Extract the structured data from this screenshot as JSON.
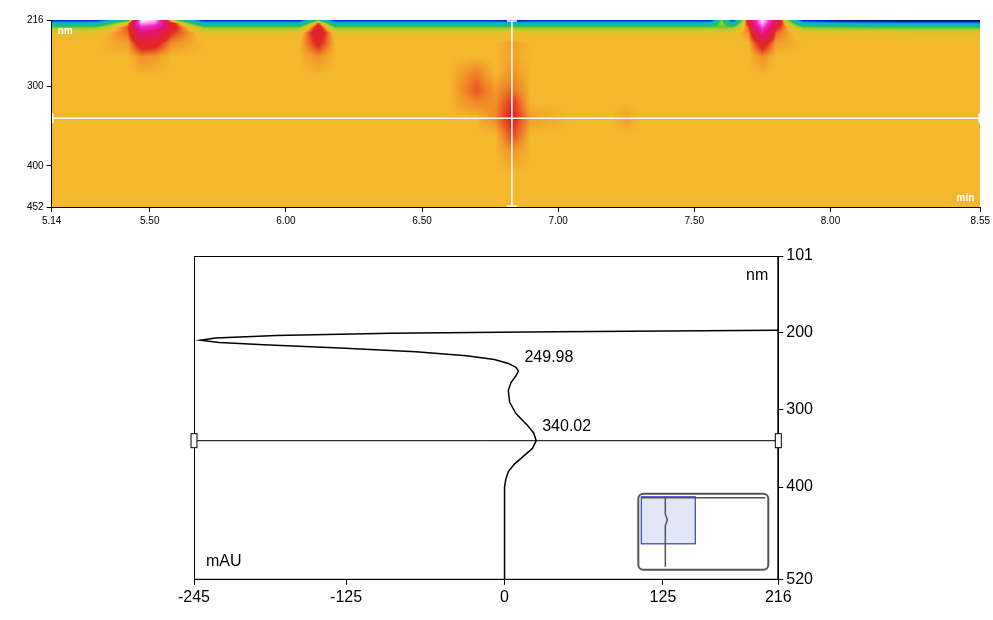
{
  "chart_data": [
    {
      "type": "heatmap",
      "x": [
        5.14,
        5.3,
        5.42,
        5.47,
        5.52,
        5.58,
        5.7,
        5.9,
        6.05,
        6.12,
        6.18,
        6.35,
        6.6,
        6.7,
        6.77,
        6.83,
        6.9,
        7.05,
        7.2,
        7.25,
        7.3,
        7.5,
        7.56,
        7.6,
        7.64,
        7.7,
        7.75,
        7.8,
        7.9,
        8.05,
        8.3,
        8.55
      ],
      "y": [
        216,
        220,
        225,
        232,
        245,
        262,
        285,
        305,
        320,
        340,
        360,
        380,
        410,
        452
      ],
      "z": [
        [
          -200,
          -200,
          -80,
          216,
          200,
          -30,
          -200,
          -200,
          -200,
          -60,
          -200,
          -200,
          -200,
          -200,
          -200,
          -220,
          -200,
          -200,
          -200,
          -200,
          -200,
          -200,
          -200,
          -40,
          -200,
          60,
          216,
          80,
          -200,
          -230,
          -240,
          -240
        ],
        [
          -110,
          -110,
          0,
          190,
          170,
          40,
          -110,
          -110,
          -110,
          20,
          -110,
          -110,
          -110,
          -110,
          -110,
          -110,
          -110,
          -110,
          -110,
          -110,
          -110,
          -110,
          -110,
          -30,
          -110,
          40,
          200,
          60,
          -110,
          -130,
          -140,
          -140
        ],
        [
          -45,
          -45,
          20,
          140,
          120,
          40,
          -45,
          -45,
          -45,
          40,
          -45,
          -45,
          -45,
          -45,
          -45,
          -45,
          -45,
          -45,
          -45,
          -45,
          -45,
          -45,
          -45,
          -45,
          -45,
          20,
          160,
          35,
          -45,
          -50,
          -55,
          -55
        ],
        [
          -8,
          -8,
          15,
          90,
          80,
          25,
          -8,
          -8,
          -8,
          45,
          -8,
          -8,
          -8,
          -8,
          -8,
          -8,
          -8,
          -8,
          -8,
          -8,
          -8,
          -8,
          -8,
          -8,
          -8,
          10,
          110,
          15,
          -8,
          -8,
          -10,
          -10
        ],
        [
          0,
          0,
          5,
          40,
          35,
          8,
          0,
          0,
          0,
          30,
          0,
          0,
          0,
          0,
          0,
          5,
          0,
          0,
          0,
          0,
          0,
          0,
          0,
          0,
          0,
          0,
          40,
          5,
          0,
          0,
          0,
          0
        ],
        [
          0,
          0,
          0,
          8,
          6,
          0,
          0,
          0,
          0,
          8,
          0,
          0,
          0,
          0,
          0,
          4,
          0,
          0,
          0,
          0,
          0,
          0,
          0,
          0,
          0,
          0,
          8,
          0,
          0,
          0,
          0,
          0
        ],
        [
          0,
          0,
          0,
          0,
          0,
          0,
          0,
          0,
          0,
          0,
          0,
          0,
          0,
          12,
          0,
          8,
          0,
          0,
          0,
          0,
          0,
          0,
          0,
          0,
          0,
          0,
          0,
          0,
          0,
          0,
          0,
          0
        ],
        [
          0,
          0,
          0,
          0,
          0,
          0,
          0,
          0,
          0,
          0,
          0,
          0,
          0,
          18,
          6,
          15,
          0,
          0,
          0,
          0,
          0,
          0,
          0,
          0,
          0,
          0,
          0,
          0,
          0,
          0,
          0,
          0
        ],
        [
          0,
          0,
          0,
          0,
          0,
          0,
          0,
          0,
          0,
          0,
          0,
          0,
          0,
          10,
          8,
          25,
          0,
          0,
          0,
          0,
          0,
          0,
          0,
          0,
          0,
          0,
          0,
          0,
          0,
          0,
          0,
          0
        ],
        [
          0,
          0,
          0,
          0,
          0,
          0,
          0,
          0,
          0,
          0,
          0,
          0,
          0,
          0,
          10,
          30,
          5,
          0,
          0,
          5,
          0,
          0,
          0,
          0,
          0,
          0,
          0,
          0,
          0,
          0,
          0,
          0
        ],
        [
          0,
          0,
          0,
          0,
          0,
          0,
          0,
          0,
          0,
          0,
          0,
          0,
          0,
          0,
          0,
          22,
          0,
          0,
          0,
          0,
          0,
          0,
          0,
          0,
          0,
          0,
          0,
          0,
          0,
          0,
          0,
          0
        ],
        [
          0,
          0,
          0,
          0,
          0,
          0,
          0,
          0,
          0,
          0,
          0,
          0,
          0,
          0,
          0,
          8,
          0,
          0,
          0,
          0,
          0,
          0,
          0,
          0,
          0,
          0,
          0,
          0,
          0,
          0,
          0,
          0
        ],
        [
          0,
          0,
          0,
          0,
          0,
          0,
          0,
          0,
          0,
          0,
          0,
          0,
          0,
          0,
          0,
          0,
          0,
          0,
          0,
          0,
          0,
          0,
          0,
          0,
          0,
          0,
          0,
          0,
          0,
          0,
          0,
          0
        ],
        [
          0,
          0,
          0,
          0,
          0,
          0,
          0,
          0,
          0,
          0,
          0,
          0,
          0,
          0,
          0,
          0,
          0,
          0,
          0,
          0,
          0,
          0,
          0,
          0,
          0,
          0,
          0,
          0,
          0,
          0,
          0,
          0
        ]
      ],
      "xlim": [
        5.14,
        8.55
      ],
      "ylim": [
        452,
        216
      ],
      "xticks": [
        5.14,
        {
          "value": 5.5,
          "label": "5.50"
        },
        {
          "value": 6,
          "label": "6.00"
        },
        {
          "value": 6.5,
          "label": "6.50"
        },
        {
          "value": 7,
          "label": "7.00"
        },
        {
          "value": 7.5,
          "label": "7.50"
        },
        {
          "value": 8,
          "label": "8.00"
        },
        8.55
      ],
      "yticks": [
        216,
        300,
        400,
        452
      ],
      "x_label": "min",
      "y_label": "nm",
      "cursor": {
        "x": 6.83,
        "y": 340
      },
      "grid": false
    },
    {
      "type": "line",
      "x": [
        216,
        40,
        -90,
        -180,
        -228,
        -240,
        -225,
        -190,
        -130,
        -70,
        -30,
        -8,
        3,
        9,
        11,
        9,
        5,
        3,
        4,
        9,
        18,
        23,
        25,
        22,
        15,
        8,
        3,
        1,
        0,
        0,
        0
      ],
      "y": [
        197,
        199,
        201,
        204,
        207,
        210,
        213,
        216,
        220,
        225,
        230,
        235,
        240,
        245,
        250,
        256,
        265,
        275,
        290,
        305,
        320,
        330,
        340,
        350,
        360,
        370,
        380,
        390,
        400,
        450,
        520
      ],
      "color": "#000000",
      "xlim": [
        -245,
        216
      ],
      "ylim": [
        520,
        101
      ],
      "xticks": [
        -245,
        -125,
        0,
        125,
        216
      ],
      "yticks": [
        101,
        200,
        300,
        400,
        520
      ],
      "x_label": "mAU",
      "y_label": "nm",
      "annotations": [
        {
          "text": "249.98",
          "x": 11,
          "y": 249.98
        },
        {
          "text": "340.02",
          "x": 25,
          "y": 340.02
        }
      ],
      "cursor": {
        "y": 340
      },
      "grid": false
    }
  ]
}
